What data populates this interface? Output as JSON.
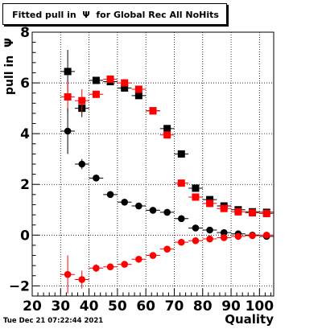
{
  "title": "Fitted pull in  Ψ  for Global Rec All NoHits",
  "timestamp": "Tue Dec 21 07:22:44 2021",
  "chart_data": {
    "type": "scatter",
    "title": "Fitted pull in  Ψ  for Global Rec All NoHits",
    "xlabel": "Quality",
    "ylabel": "pull in  Ψ",
    "xlim": [
      20,
      105
    ],
    "ylim": [
      -2.4,
      8
    ],
    "x_ticks": [
      20,
      30,
      40,
      50,
      60,
      70,
      80,
      90,
      100
    ],
    "y_ticks": [
      -2,
      0,
      2,
      4,
      6,
      8
    ],
    "grid": true,
    "legend": "none",
    "series": [
      {
        "color": "#000000",
        "marker": "square",
        "x": [
          32.5,
          37.5,
          42.5,
          47.5,
          52.5,
          57.5,
          62.5,
          67.5,
          72.5,
          77.5,
          82.5,
          87.5,
          92.5,
          97.5,
          102.5
        ],
        "y": [
          6.45,
          5.0,
          6.1,
          6.05,
          5.8,
          5.5,
          4.9,
          4.2,
          3.2,
          1.85,
          1.4,
          1.15,
          1.0,
          0.92,
          0.9
        ],
        "yerr": [
          0.85,
          0.35,
          0.12,
          0.1,
          0.08,
          0.07,
          0.07,
          0.07,
          0.07,
          0.06,
          0.06,
          0.06,
          0.05,
          0.05,
          0.05
        ]
      },
      {
        "color": "#ff0000",
        "marker": "square",
        "x": [
          32.5,
          37.5,
          42.5,
          47.5,
          52.5,
          57.5,
          62.5,
          67.5,
          72.5,
          77.5,
          82.5,
          87.5,
          92.5,
          97.5,
          102.5
        ],
        "y": [
          5.45,
          5.3,
          5.55,
          6.15,
          6.0,
          5.75,
          4.9,
          3.95,
          2.05,
          1.5,
          1.25,
          1.05,
          0.92,
          0.88,
          0.85
        ],
        "yerr": [
          0.6,
          0.45,
          0.12,
          0.1,
          0.08,
          0.07,
          0.07,
          0.07,
          0.07,
          0.06,
          0.06,
          0.06,
          0.05,
          0.05,
          0.05
        ]
      },
      {
        "color": "#000000",
        "marker": "circle",
        "x": [
          32.5,
          37.5,
          42.5,
          47.5,
          52.5,
          57.5,
          62.5,
          67.5,
          72.5,
          77.5,
          82.5,
          87.5,
          92.5,
          97.5,
          102.5
        ],
        "y": [
          4.1,
          2.8,
          2.25,
          1.6,
          1.3,
          1.15,
          0.98,
          0.9,
          0.65,
          0.28,
          0.2,
          0.1,
          0.05,
          0.0,
          -0.05
        ],
        "yerr": [
          0.9,
          0.2,
          0.12,
          0.08,
          0.06,
          0.06,
          0.05,
          0.05,
          0.05,
          0.05,
          0.04,
          0.04,
          0.04,
          0.04,
          0.04
        ]
      },
      {
        "color": "#ff0000",
        "marker": "circle",
        "x": [
          32.5,
          37.5,
          42.5,
          47.5,
          52.5,
          57.5,
          62.5,
          67.5,
          72.5,
          77.5,
          82.5,
          87.5,
          92.5,
          97.5,
          102.5
        ],
        "y": [
          -1.55,
          -1.75,
          -1.3,
          -1.25,
          -1.15,
          -0.95,
          -0.8,
          -0.55,
          -0.28,
          -0.22,
          -0.15,
          -0.1,
          -0.05,
          -0.02,
          0.0
        ],
        "yerr": [
          0.75,
          0.35,
          0.15,
          0.1,
          0.08,
          0.07,
          0.06,
          0.06,
          0.05,
          0.05,
          0.05,
          0.04,
          0.04,
          0.04,
          0.04
        ]
      }
    ]
  }
}
